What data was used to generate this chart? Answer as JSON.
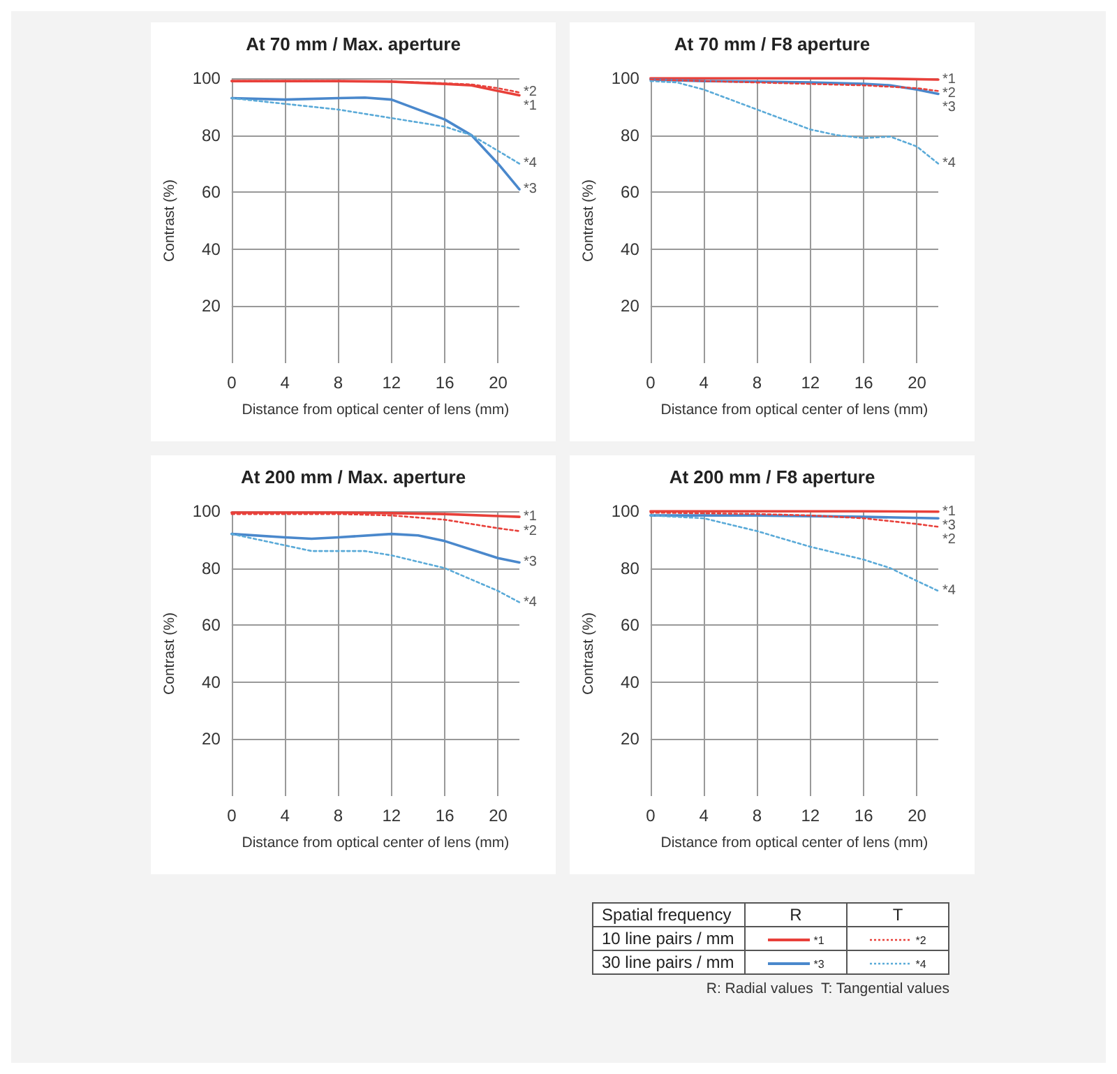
{
  "chart_data": [
    {
      "type": "line",
      "title": "At 70 mm / Max. aperture",
      "xlabel": "Distance from optical center of lens (mm)",
      "ylabel": "Contrast (%)",
      "xlim": [
        0,
        21.6
      ],
      "xticks": [
        0,
        4,
        8,
        12,
        16,
        20
      ],
      "ylim": [
        0,
        100
      ],
      "yticks": [
        20,
        40,
        60,
        80,
        100
      ],
      "grid": true,
      "marker": "none",
      "series": [
        {
          "name": "*1",
          "color": "#e8403a",
          "line_style": "solid",
          "x": [
            0,
            4,
            8,
            12,
            16,
            18,
            20,
            21.6
          ],
          "values": [
            99,
            99,
            99,
            98.8,
            98,
            97.5,
            95.5,
            94
          ]
        },
        {
          "name": "*2",
          "color": "#e8403a",
          "line_style": "dotted",
          "x": [
            0,
            4,
            8,
            12,
            16,
            18,
            20,
            21.6
          ],
          "values": [
            99,
            99,
            99,
            98.8,
            98.2,
            97.8,
            96.5,
            95
          ]
        },
        {
          "name": "*3",
          "color": "#4a88cc",
          "line_style": "solid",
          "x": [
            0,
            4,
            8,
            10,
            12,
            14,
            16,
            18,
            20,
            21.6
          ],
          "values": [
            93,
            92.5,
            93,
            93.2,
            92.5,
            89,
            85.5,
            80,
            70,
            61
          ]
        },
        {
          "name": "*4",
          "color": "#5aaad8",
          "line_style": "dotted",
          "x": [
            0,
            4,
            8,
            12,
            16,
            18,
            20,
            21.6
          ],
          "values": [
            93,
            91,
            89,
            86,
            83,
            80,
            74.5,
            70
          ]
        }
      ]
    },
    {
      "type": "line",
      "title": "At 70 mm / F8 aperture",
      "xlabel": "Distance from optical center of lens (mm)",
      "ylabel": "Contrast (%)",
      "xlim": [
        0,
        21.6
      ],
      "xticks": [
        0,
        4,
        8,
        12,
        16,
        20
      ],
      "ylim": [
        0,
        100
      ],
      "yticks": [
        20,
        40,
        60,
        80,
        100
      ],
      "grid": true,
      "marker": "none",
      "series": [
        {
          "name": "*1",
          "color": "#e8403a",
          "line_style": "solid",
          "x": [
            0,
            8,
            16,
            21.6
          ],
          "values": [
            100,
            100,
            100,
            99.5
          ]
        },
        {
          "name": "*2",
          "color": "#e8403a",
          "line_style": "dotted",
          "x": [
            0,
            4,
            8,
            12,
            16,
            20,
            21.6
          ],
          "values": [
            99.5,
            99,
            98.5,
            98,
            97.5,
            96.5,
            95.5
          ]
        },
        {
          "name": "*3",
          "color": "#4a88cc",
          "line_style": "solid",
          "x": [
            0,
            4,
            8,
            12,
            16,
            18,
            20,
            21.6
          ],
          "values": [
            99.5,
            99,
            98.8,
            98.5,
            98,
            97.5,
            96,
            94.5
          ]
        },
        {
          "name": "*4",
          "color": "#5aaad8",
          "line_style": "dotted",
          "x": [
            0,
            2,
            4,
            8,
            12,
            14,
            16,
            18,
            20,
            21.6
          ],
          "values": [
            99,
            98.5,
            96,
            89,
            82,
            80,
            79,
            79.5,
            76,
            70
          ]
        }
      ]
    },
    {
      "type": "line",
      "title": "At 200 mm / Max. aperture",
      "xlabel": "Distance from optical center of lens (mm)",
      "ylabel": "Contrast (%)",
      "xlim": [
        0,
        21.6
      ],
      "xticks": [
        0,
        4,
        8,
        12,
        16,
        20
      ],
      "ylim": [
        0,
        100
      ],
      "yticks": [
        20,
        40,
        60,
        80,
        100
      ],
      "grid": true,
      "marker": "none",
      "series": [
        {
          "name": "*1",
          "color": "#e8403a",
          "line_style": "solid",
          "x": [
            0,
            8,
            12,
            16,
            20,
            21.6
          ],
          "values": [
            99.5,
            99.5,
            99.3,
            99,
            98.3,
            98
          ]
        },
        {
          "name": "*2",
          "color": "#e8403a",
          "line_style": "dotted",
          "x": [
            0,
            8,
            12,
            16,
            20,
            21.6
          ],
          "values": [
            99,
            99,
            98.5,
            97,
            94,
            93
          ]
        },
        {
          "name": "*3",
          "color": "#4a88cc",
          "line_style": "solid",
          "x": [
            0,
            4,
            6,
            8,
            12,
            14,
            16,
            20,
            21.6
          ],
          "values": [
            92,
            90.8,
            90.3,
            90.8,
            92,
            91.5,
            89.5,
            83.5,
            82
          ]
        },
        {
          "name": "*4",
          "color": "#5aaad8",
          "line_style": "dotted",
          "x": [
            0,
            4,
            6,
            8,
            10,
            12,
            16,
            20,
            21.6
          ],
          "values": [
            92,
            88,
            86,
            86,
            86,
            84.5,
            80,
            72,
            68
          ]
        }
      ]
    },
    {
      "type": "line",
      "title": "At 200 mm / F8 aperture",
      "xlabel": "Distance from optical center of lens (mm)",
      "ylabel": "Contrast (%)",
      "xlim": [
        0,
        21.6
      ],
      "xticks": [
        0,
        4,
        8,
        12,
        16,
        20
      ],
      "ylim": [
        0,
        100
      ],
      "yticks": [
        20,
        40,
        60,
        80,
        100
      ],
      "grid": true,
      "marker": "none",
      "series": [
        {
          "name": "*1",
          "color": "#e8403a",
          "line_style": "solid",
          "x": [
            0,
            8,
            16,
            21.6
          ],
          "values": [
            100,
            100,
            100,
            99.8
          ]
        },
        {
          "name": "*3",
          "color": "#4a88cc",
          "line_style": "solid",
          "x": [
            0,
            8,
            16,
            21.6
          ],
          "values": [
            98.5,
            98.5,
            98,
            97.5
          ]
        },
        {
          "name": "*2",
          "color": "#e8403a",
          "line_style": "dotted",
          "x": [
            0,
            8,
            12,
            16,
            20,
            21.6
          ],
          "values": [
            99.5,
            99,
            98.5,
            97.5,
            95.5,
            94.5
          ]
        },
        {
          "name": "*4",
          "color": "#5aaad8",
          "line_style": "dotted",
          "x": [
            0,
            4,
            8,
            12,
            16,
            18,
            20,
            21.6
          ],
          "values": [
            98.5,
            97.5,
            93,
            87.5,
            83,
            80,
            75.5,
            72
          ]
        }
      ]
    },
    {
      "type": "other",
      "legend_title": "Spatial frequency",
      "categories": [
        "R",
        "T"
      ],
      "y_categories": [
        "10 line pairs / mm",
        "30 line pairs / mm"
      ],
      "cell_labels": [
        [
          "*1",
          "*2"
        ],
        [
          "*3",
          "*4"
        ]
      ],
      "annotations": [
        "R: Radial values  T: Tangential values"
      ]
    }
  ]
}
